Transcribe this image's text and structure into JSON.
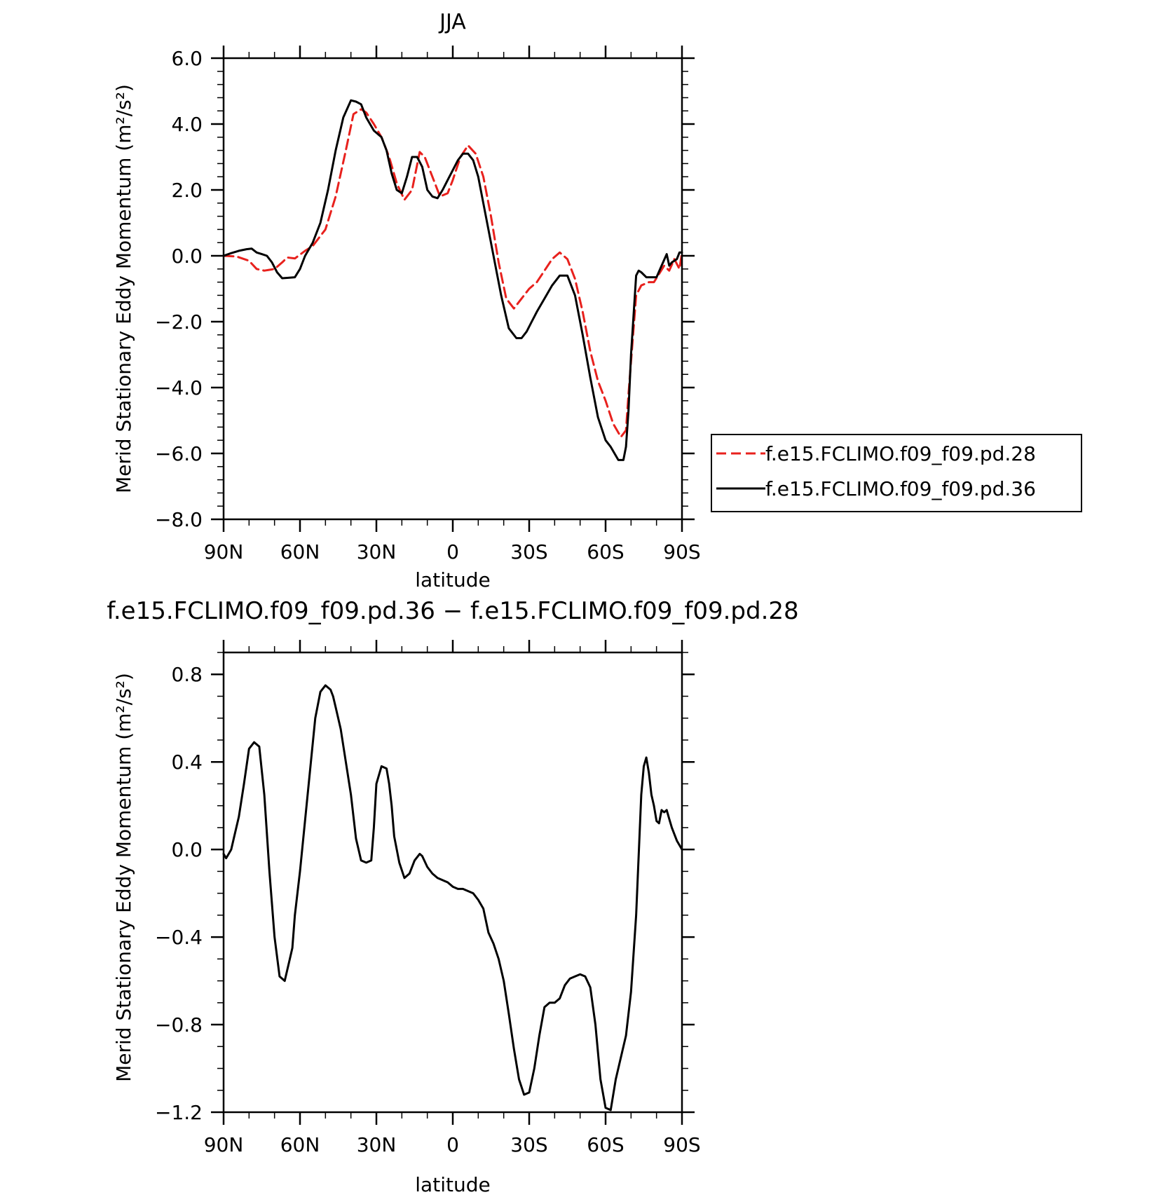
{
  "chart_data": [
    {
      "type": "line",
      "title": "JJA",
      "xlabel": "latitude",
      "ylabel": "Merid Stationary Eddy Momentum (m²/s²)",
      "xlim": [
        90,
        -90
      ],
      "ylim": [
        -8.0,
        6.0
      ],
      "xticks": [
        90,
        60,
        30,
        0,
        -30,
        -60,
        -90
      ],
      "xtick_labels": [
        "90N",
        "60N",
        "30N",
        "0",
        "30S",
        "60S",
        "90S"
      ],
      "yticks": [
        6.0,
        4.0,
        2.0,
        0.0,
        -2.0,
        -4.0,
        -6.0,
        -8.0
      ],
      "ytick_labels": [
        "6.0",
        "4.0",
        "2.0",
        "0.0",
        "−2.0",
        "−4.0",
        "−6.0",
        "−8.0"
      ],
      "legend_position": "right",
      "series": [
        {
          "name": "f.e15.FCLIMO.f09_f09.pd.28",
          "color": "#e8211d",
          "dash": "dashed",
          "x": [
            90,
            85,
            80,
            77,
            74,
            70,
            67,
            65,
            62,
            58,
            55,
            50,
            46,
            42,
            39,
            36,
            34,
            31,
            28,
            25,
            22,
            19,
            16,
            13,
            11,
            8,
            5,
            2,
            0,
            -3,
            -6,
            -9,
            -12,
            -15,
            -18,
            -21,
            -24,
            -27,
            -30,
            -33,
            -36,
            -39,
            -42,
            -45,
            -48,
            -51,
            -54,
            -57,
            -60,
            -63,
            -66,
            -68,
            -69,
            -72,
            -74,
            -77,
            -79,
            -81,
            -83,
            -85,
            -87,
            -89,
            -90
          ],
          "y": [
            0.0,
            -0.02,
            -0.15,
            -0.4,
            -0.45,
            -0.4,
            -0.2,
            -0.05,
            -0.08,
            0.15,
            0.3,
            0.8,
            1.8,
            3.2,
            4.3,
            4.45,
            4.35,
            4.0,
            3.6,
            3.0,
            2.2,
            1.7,
            2.0,
            3.15,
            3.0,
            2.4,
            1.8,
            1.9,
            2.3,
            3.0,
            3.35,
            3.1,
            2.4,
            1.2,
            -0.2,
            -1.3,
            -1.6,
            -1.3,
            -1.0,
            -0.8,
            -0.45,
            -0.1,
            0.1,
            -0.1,
            -0.7,
            -1.7,
            -2.9,
            -3.8,
            -4.4,
            -5.1,
            -5.5,
            -5.3,
            -4.2,
            -1.2,
            -0.9,
            -0.8,
            -0.8,
            -0.55,
            -0.3,
            -0.45,
            -0.1,
            -0.4,
            0.1
          ]
        },
        {
          "name": "f.e15.FCLIMO.f09_f09.pd.36",
          "color": "#000000",
          "dash": "solid",
          "x": [
            90,
            87,
            84,
            81,
            79,
            77,
            75,
            73,
            71,
            69,
            67,
            65,
            62,
            60,
            58,
            55,
            52,
            49,
            46,
            43,
            40,
            38,
            36,
            34,
            31,
            28,
            26,
            24,
            22,
            20,
            18,
            16,
            14,
            12,
            10,
            8,
            6,
            4,
            2,
            0,
            -2,
            -4,
            -6,
            -8,
            -10,
            -13,
            -16,
            -19,
            -22,
            -25,
            -27,
            -29,
            -31,
            -33,
            -36,
            -39,
            -42,
            -45,
            -48,
            -51,
            -54,
            -57,
            -60,
            -62,
            -65,
            -67,
            -68,
            -69,
            -70,
            -72,
            -73,
            -74,
            -76,
            -78,
            -80,
            -82,
            -84,
            -85,
            -86,
            -88,
            -89,
            -90
          ],
          "y": [
            0.0,
            0.08,
            0.15,
            0.2,
            0.22,
            0.1,
            0.05,
            0.0,
            -0.2,
            -0.5,
            -0.68,
            -0.67,
            -0.65,
            -0.4,
            0.0,
            0.4,
            1.0,
            2.0,
            3.2,
            4.2,
            4.72,
            4.68,
            4.6,
            4.2,
            3.8,
            3.6,
            3.2,
            2.5,
            2.0,
            1.9,
            2.4,
            3.0,
            3.0,
            2.7,
            2.0,
            1.8,
            1.75,
            2.0,
            2.3,
            2.6,
            2.9,
            3.1,
            3.1,
            2.9,
            2.4,
            1.2,
            0.0,
            -1.2,
            -2.2,
            -2.5,
            -2.5,
            -2.3,
            -2.0,
            -1.7,
            -1.3,
            -0.9,
            -0.6,
            -0.6,
            -1.2,
            -2.4,
            -3.7,
            -4.9,
            -5.6,
            -5.8,
            -6.2,
            -6.2,
            -5.8,
            -4.7,
            -3.0,
            -0.6,
            -0.45,
            -0.5,
            -0.65,
            -0.65,
            -0.65,
            -0.3,
            0.05,
            -0.3,
            -0.2,
            -0.1,
            0.1,
            0.1
          ]
        }
      ]
    },
    {
      "type": "line",
      "title": "f.e15.FCLIMO.f09_f09.pd.36 − f.e15.FCLIMO.f09_f09.pd.28",
      "xlabel": "latitude",
      "ylabel": "Merid Stationary Eddy Momentum (m²/s²)",
      "xlim": [
        90,
        -90
      ],
      "ylim": [
        -1.2,
        0.9
      ],
      "xticks": [
        90,
        60,
        30,
        0,
        -30,
        -60,
        -90
      ],
      "xtick_labels": [
        "90N",
        "60N",
        "30N",
        "0",
        "30S",
        "60S",
        "90S"
      ],
      "yticks": [
        0.8,
        0.4,
        0.0,
        -0.4,
        -0.8,
        -1.2
      ],
      "ytick_labels": [
        "0.8",
        "0.4",
        "0.0",
        "−0.4",
        "−0.8",
        "−1.2"
      ],
      "series": [
        {
          "color": "#000000",
          "dash": "solid",
          "x": [
            90,
            89,
            88,
            87,
            86,
            84,
            82,
            80,
            78,
            76,
            74,
            72,
            70,
            68,
            66,
            64,
            63,
            62,
            60,
            57,
            54,
            52,
            50,
            48,
            47,
            46,
            44,
            42,
            40,
            38,
            36,
            34,
            32,
            31,
            30,
            28,
            26,
            25,
            24,
            23,
            21,
            19,
            17,
            15,
            13,
            12,
            10,
            8,
            6,
            4,
            2,
            0,
            -2,
            -4,
            -6,
            -8,
            -10,
            -12,
            -14,
            -16,
            -18,
            -20,
            -22,
            -24,
            -26,
            -28,
            -30,
            -32,
            -34,
            -36,
            -38,
            -40,
            -42,
            -44,
            -46,
            -48,
            -50,
            -52,
            -54,
            -56,
            -58,
            -60,
            -62,
            -64,
            -66,
            -68,
            -70,
            -72,
            -74,
            -75,
            -76,
            -77,
            -78,
            -79,
            -80,
            -81,
            -82,
            -83,
            -84,
            -85,
            -86,
            -88,
            -90
          ],
          "y": [
            -0.02,
            -0.04,
            -0.02,
            0.0,
            0.05,
            0.15,
            0.3,
            0.46,
            0.49,
            0.47,
            0.25,
            -0.1,
            -0.4,
            -0.58,
            -0.6,
            -0.5,
            -0.45,
            -0.3,
            -0.1,
            0.25,
            0.6,
            0.72,
            0.75,
            0.73,
            0.7,
            0.65,
            0.55,
            0.4,
            0.25,
            0.05,
            -0.05,
            -0.06,
            -0.05,
            0.1,
            0.3,
            0.38,
            0.37,
            0.3,
            0.2,
            0.06,
            -0.06,
            -0.13,
            -0.11,
            -0.05,
            -0.02,
            -0.03,
            -0.08,
            -0.11,
            -0.13,
            -0.14,
            -0.15,
            -0.17,
            -0.18,
            -0.18,
            -0.19,
            -0.2,
            -0.23,
            -0.27,
            -0.38,
            -0.43,
            -0.5,
            -0.6,
            -0.75,
            -0.91,
            -1.05,
            -1.12,
            -1.11,
            -1.0,
            -0.85,
            -0.72,
            -0.7,
            -0.7,
            -0.68,
            -0.62,
            -0.59,
            -0.58,
            -0.57,
            -0.58,
            -0.63,
            -0.8,
            -1.05,
            -1.18,
            -1.19,
            -1.05,
            -0.95,
            -0.85,
            -0.65,
            -0.3,
            0.25,
            0.38,
            0.42,
            0.35,
            0.25,
            0.2,
            0.13,
            0.12,
            0.18,
            0.17,
            0.18,
            0.14,
            0.1,
            0.04,
            0.0
          ]
        }
      ]
    }
  ]
}
